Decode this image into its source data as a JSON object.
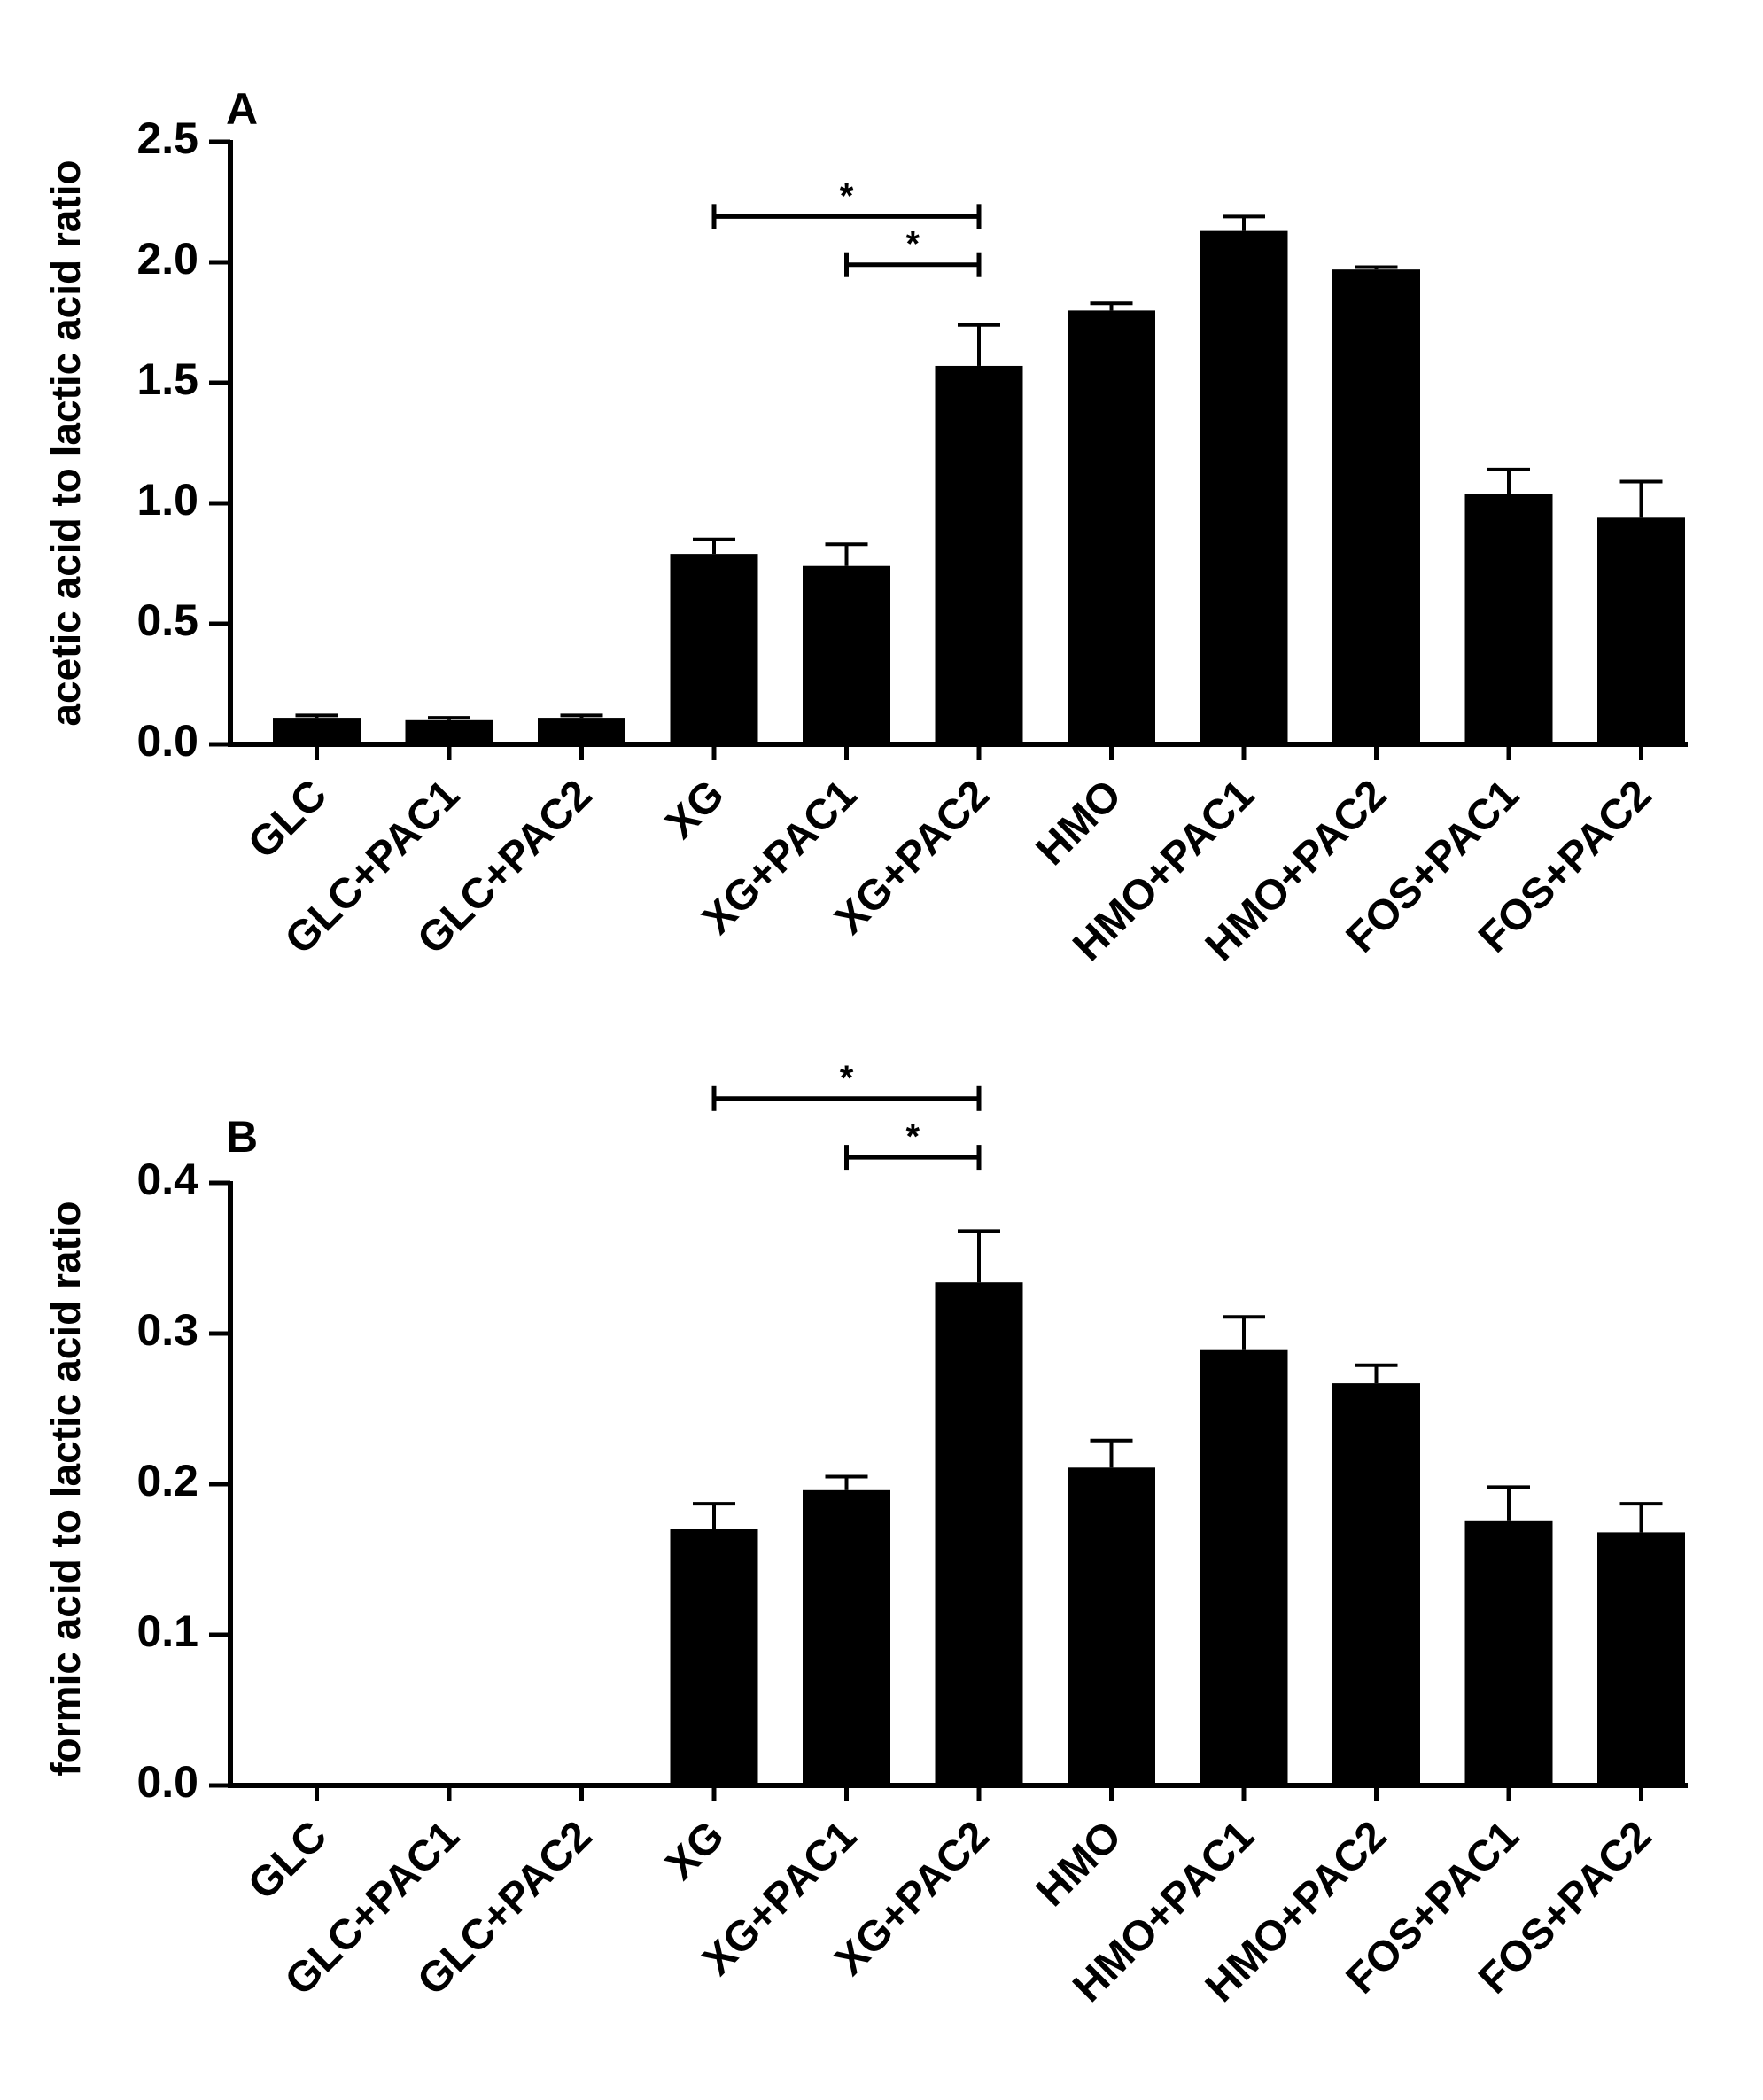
{
  "chart_data": [
    {
      "type": "bar",
      "panel_label": "A",
      "ylabel": "acetic acid to lactic acid ratio",
      "xlabel": "",
      "categories": [
        "GLC",
        "GLC+PAC1",
        "GLC+PAC2",
        "XG",
        "XG+PAC1",
        "XG+PAC2",
        "HMO",
        "HMO+PAC1",
        "HMO+PAC2",
        "FOS+PAC1",
        "FOS+PAC2"
      ],
      "values": [
        0.11,
        0.1,
        0.11,
        0.79,
        0.74,
        1.57,
        1.8,
        2.13,
        1.97,
        1.04,
        0.94
      ],
      "errors": [
        0.01,
        0.01,
        0.01,
        0.06,
        0.09,
        0.17,
        0.03,
        0.06,
        0.01,
        0.1,
        0.15
      ],
      "ylim": [
        0,
        2.5
      ],
      "yticks": [
        0.0,
        0.5,
        1.0,
        1.5,
        2.0,
        2.5
      ],
      "ytick_labels": [
        "0.0",
        "0.5",
        "1.0",
        "1.5",
        "2.0",
        "2.5"
      ],
      "bar_color": "#000000",
      "significance": [
        {
          "from": "XG",
          "to": "XG+PAC2",
          "level": 2.19,
          "label": "*"
        },
        {
          "from": "XG+PAC1",
          "to": "XG+PAC2",
          "level": 1.99,
          "label": "*"
        }
      ]
    },
    {
      "type": "bar",
      "panel_label": "B",
      "ylabel": "formic acid to lactic acid ratio",
      "xlabel": "",
      "categories": [
        "GLC",
        "GLC+PAC1",
        "GLC+PAC2",
        "XG",
        "XG+PAC1",
        "XG+PAC2",
        "HMO",
        "HMO+PAC1",
        "HMO+PAC2",
        "FOS+PAC1",
        "FOS+PAC2"
      ],
      "values": [
        0.0,
        0.0,
        0.0,
        0.17,
        0.196,
        0.334,
        0.211,
        0.289,
        0.267,
        0.176,
        0.168
      ],
      "errors": [
        0.0,
        0.0,
        0.0,
        0.017,
        0.009,
        0.034,
        0.018,
        0.022,
        0.012,
        0.022,
        0.019
      ],
      "ylim": [
        0,
        0.4
      ],
      "yticks": [
        0.0,
        0.1,
        0.2,
        0.3,
        0.4
      ],
      "ytick_labels": [
        "0.0",
        "0.1",
        "0.2",
        "0.3",
        "0.4"
      ],
      "bar_color": "#000000",
      "significance": [
        {
          "from": "XG",
          "to": "XG+PAC2",
          "level": 0.456,
          "label": "*"
        },
        {
          "from": "XG+PAC1",
          "to": "XG+PAC2",
          "level": 0.417,
          "label": "*"
        }
      ]
    }
  ]
}
